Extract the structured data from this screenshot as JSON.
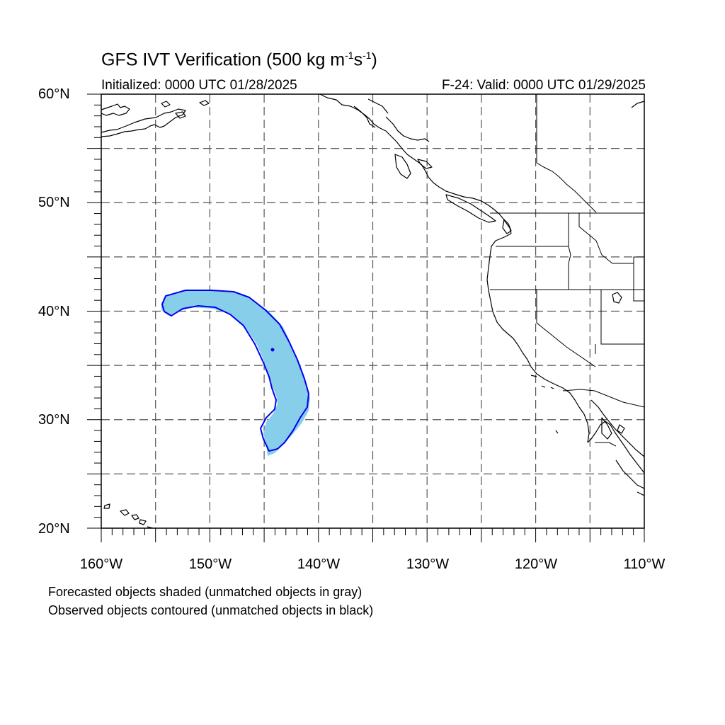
{
  "title": {
    "main": "GFS IVT Verification (500 kg m",
    "sup1": "-1",
    "mid": "s",
    "sup2": "-1",
    "end": ")"
  },
  "subtitle": {
    "left": "Initialized: 0000 UTC 01/28/2025",
    "right": "F-24: Valid: 0000 UTC 01/29/2025"
  },
  "axes": {
    "lat_labels": [
      "60°N",
      "50°N",
      "40°N",
      "30°N",
      "20°N"
    ],
    "lon_labels": [
      "160°W",
      "150°W",
      "140°W",
      "130°W",
      "120°W",
      "110°W"
    ],
    "lat_range": [
      20,
      60
    ],
    "lon_range": [
      -160,
      -110
    ],
    "grid_spacing_deg": 5,
    "gridlines": "dashed"
  },
  "notes": [
    "Forecasted objects shaded (unmatched objects in gray)",
    "Observed objects contoured (unmatched objects in black)"
  ],
  "colors": {
    "forecast_fill": "#87CEEB",
    "observed_contour": "#0000EE",
    "coastline": "#000000",
    "grid": "#555555"
  }
}
